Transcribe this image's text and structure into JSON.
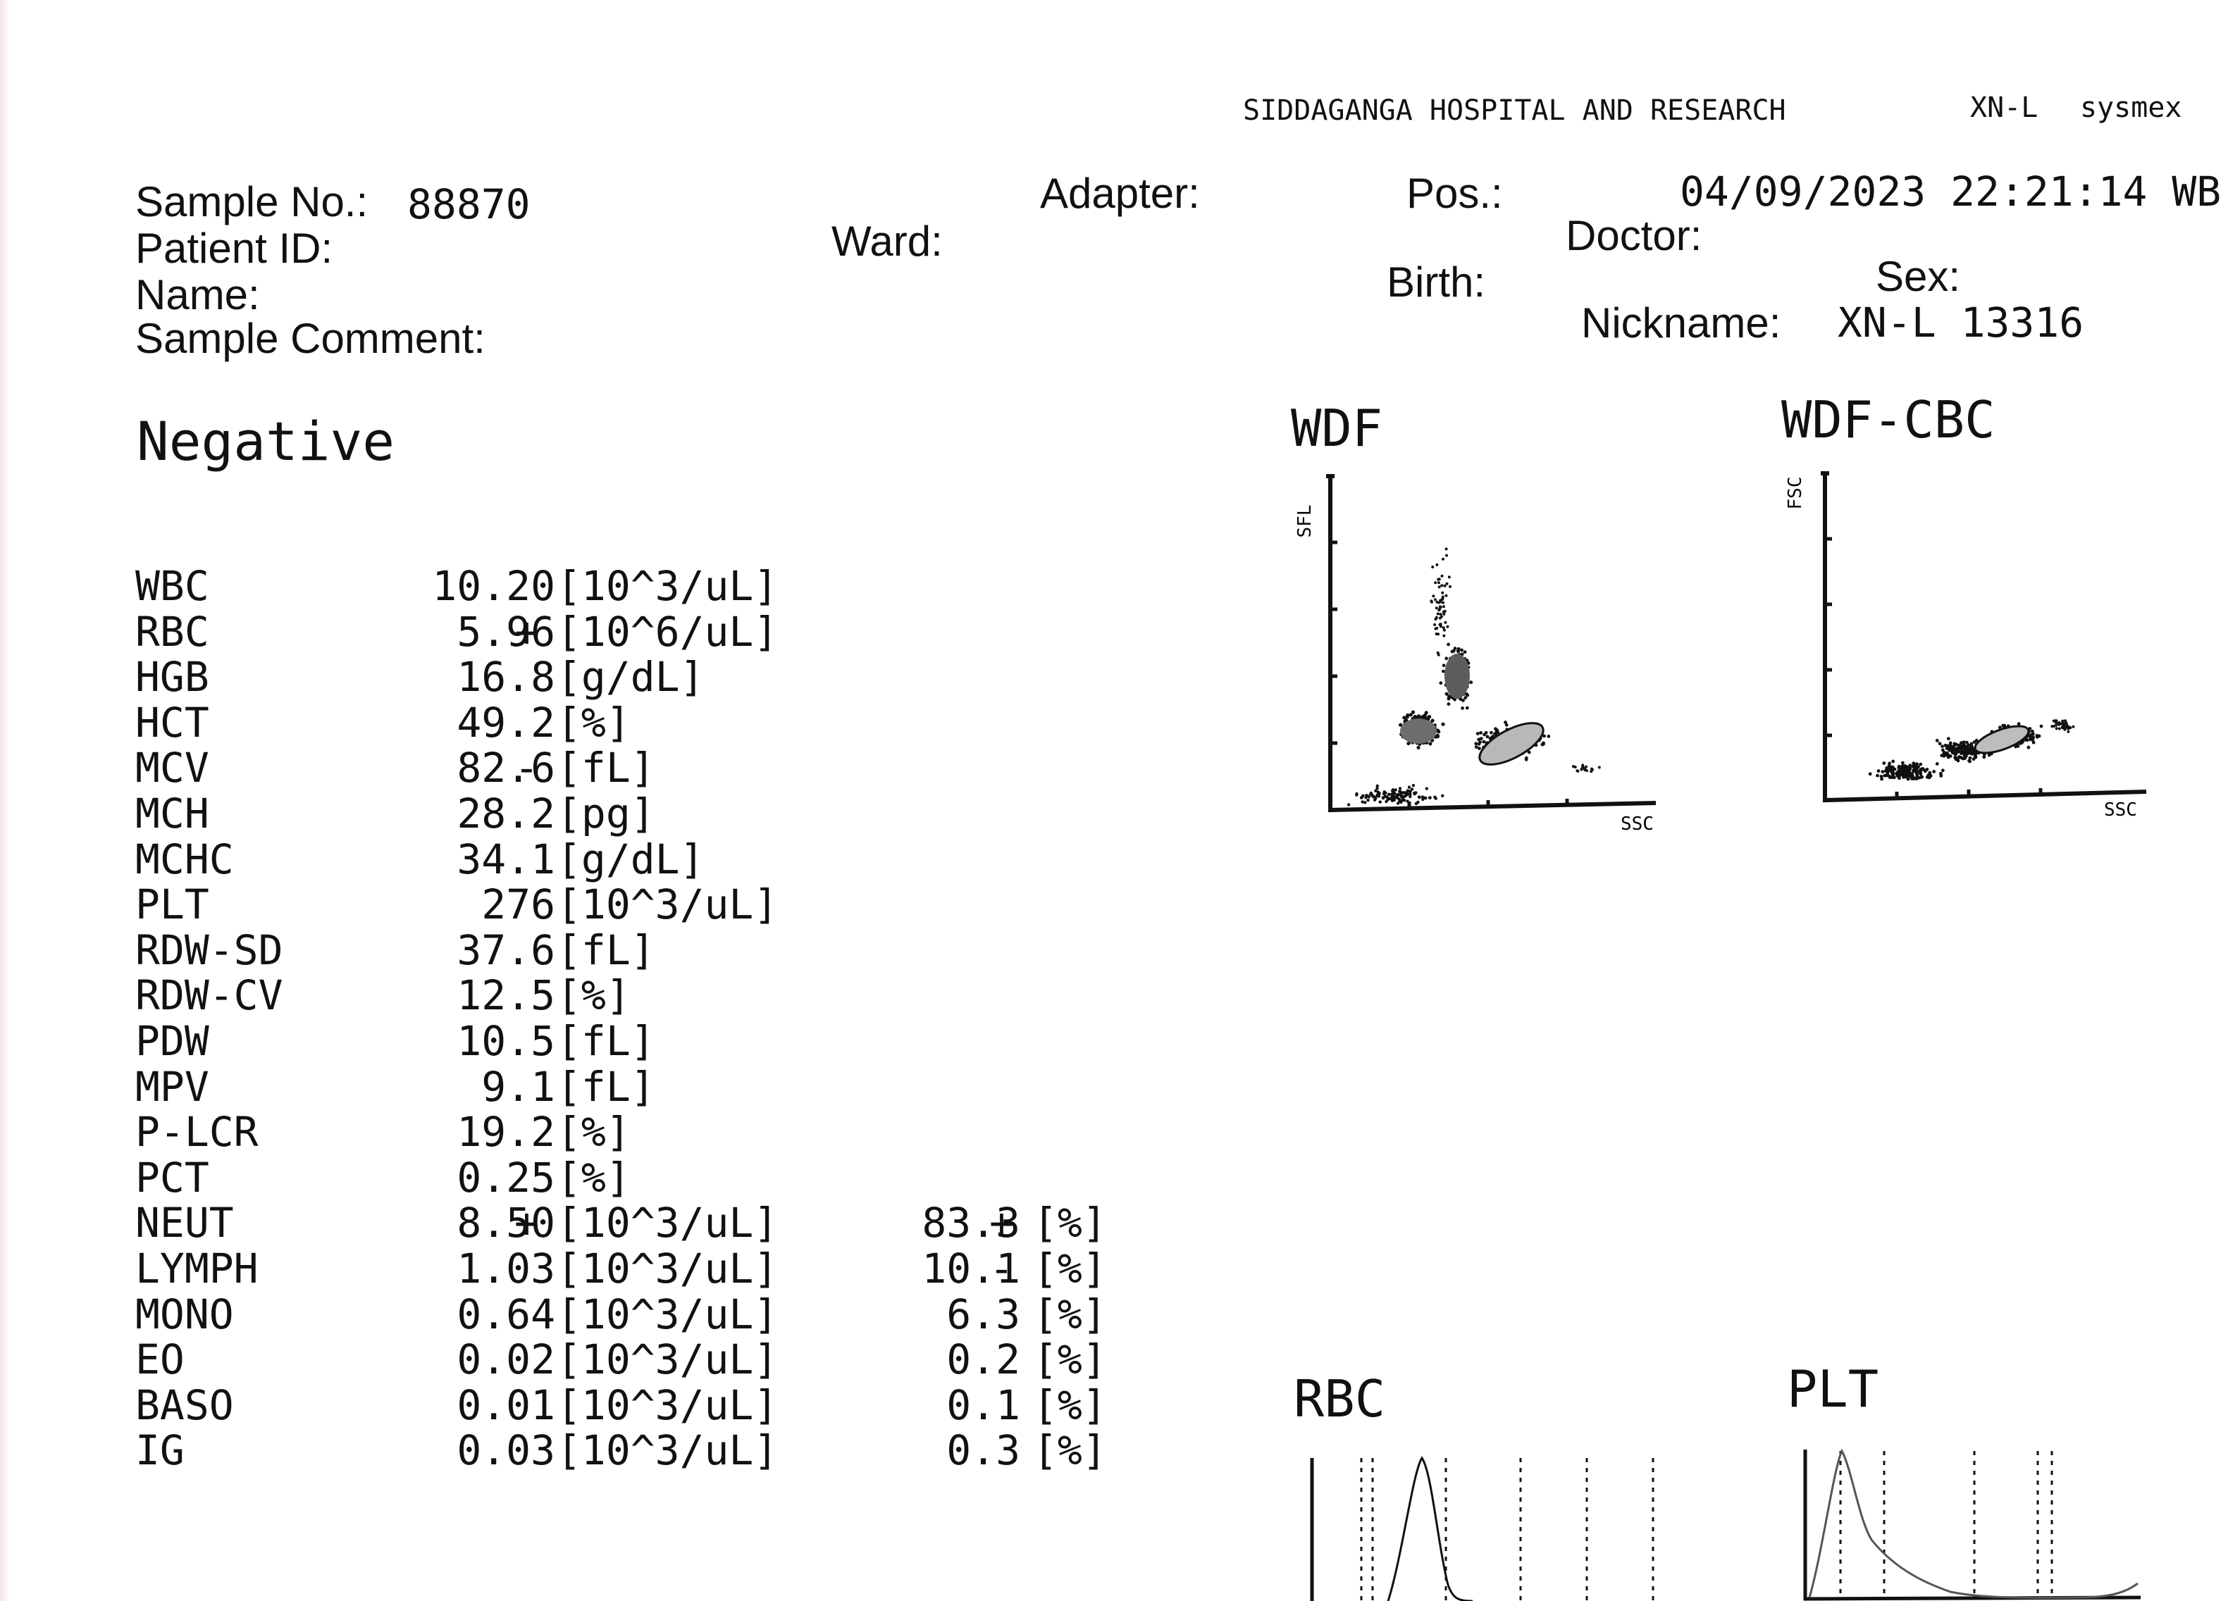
{
  "header": {
    "hospital": "SIDDAGANGA HOSPITAL AND RESEARCH",
    "analyzer": "XN-L",
    "brand": "sysmex"
  },
  "patient_info": {
    "sample_no_label": "Sample No.:",
    "sample_no": "88870",
    "patient_id_label": "Patient ID:",
    "name_label": "Name:",
    "sample_comment_label": "Sample Comment:",
    "ward_label": "Ward:",
    "adapter_label": "Adapter:",
    "pos_label": "Pos.:",
    "datetime": "04/09/2023 22:21:14 WB",
    "doctor_label": "Doctor:",
    "birth_label": "Birth:",
    "sex_label": "Sex:",
    "nickname_label": "Nickname:",
    "nickname": "XN-L 13316"
  },
  "judgment": "Negative",
  "results": [
    {
      "name": "WBC",
      "value": "10.20",
      "flag": "",
      "unit": "[10^3/uL]"
    },
    {
      "name": "RBC",
      "value": "5.96",
      "flag": "+",
      "unit": "[10^6/uL]"
    },
    {
      "name": "HGB",
      "value": "16.8",
      "flag": "",
      "unit": "[g/dL]"
    },
    {
      "name": "HCT",
      "value": "49.2",
      "flag": "",
      "unit": "[%]"
    },
    {
      "name": "MCV",
      "value": "82.6",
      "flag": "-",
      "unit": "[fL]"
    },
    {
      "name": "MCH",
      "value": "28.2",
      "flag": "",
      "unit": "[pg]"
    },
    {
      "name": "MCHC",
      "value": "34.1",
      "flag": "",
      "unit": "[g/dL]"
    },
    {
      "name": "PLT",
      "value": "276",
      "flag": "",
      "unit": "[10^3/uL]"
    },
    {
      "name": "RDW-SD",
      "value": "37.6",
      "flag": "",
      "unit": "[fL]"
    },
    {
      "name": "RDW-CV",
      "value": "12.5",
      "flag": "",
      "unit": "[%]"
    },
    {
      "name": "PDW",
      "value": "10.5",
      "flag": "",
      "unit": "[fL]"
    },
    {
      "name": "MPV",
      "value": "9.1",
      "flag": "",
      "unit": "[fL]"
    },
    {
      "name": "P-LCR",
      "value": "19.2",
      "flag": "",
      "unit": "[%]"
    },
    {
      "name": "PCT",
      "value": "0.25",
      "flag": "",
      "unit": "[%]"
    },
    {
      "name": "NEUT",
      "value": "8.50",
      "flag": "+",
      "unit": "[10^3/uL]",
      "pct": "83.3",
      "pct_flag": "+",
      "pct_unit": "[%]"
    },
    {
      "name": "LYMPH",
      "value": "1.03",
      "flag": "",
      "unit": "[10^3/uL]",
      "pct": "10.1",
      "pct_flag": "-",
      "pct_unit": "[%]"
    },
    {
      "name": "MONO",
      "value": "0.64",
      "flag": "",
      "unit": "[10^3/uL]",
      "pct": "6.3",
      "pct_flag": "",
      "pct_unit": "[%]"
    },
    {
      "name": "EO",
      "value": "0.02",
      "flag": "",
      "unit": "[10^3/uL]",
      "pct": "0.2",
      "pct_flag": "",
      "pct_unit": "[%]"
    },
    {
      "name": "BASO",
      "value": "0.01",
      "flag": "",
      "unit": "[10^3/uL]",
      "pct": "0.1",
      "pct_flag": "",
      "pct_unit": "[%]"
    },
    {
      "name": "IG",
      "value": "0.03",
      "flag": "",
      "unit": "[10^3/uL]",
      "pct": "0.3",
      "pct_flag": "",
      "pct_unit": "[%]"
    }
  ],
  "plots": {
    "wdf": {
      "title": "WDF",
      "ylabel": "SFL",
      "xlabel": "SSC"
    },
    "wdf_cbc": {
      "title": "WDF-CBC",
      "ylabel": "FSC",
      "xlabel": "SSC"
    },
    "rbc": {
      "title": "RBC"
    },
    "plt": {
      "title": "PLT"
    }
  }
}
